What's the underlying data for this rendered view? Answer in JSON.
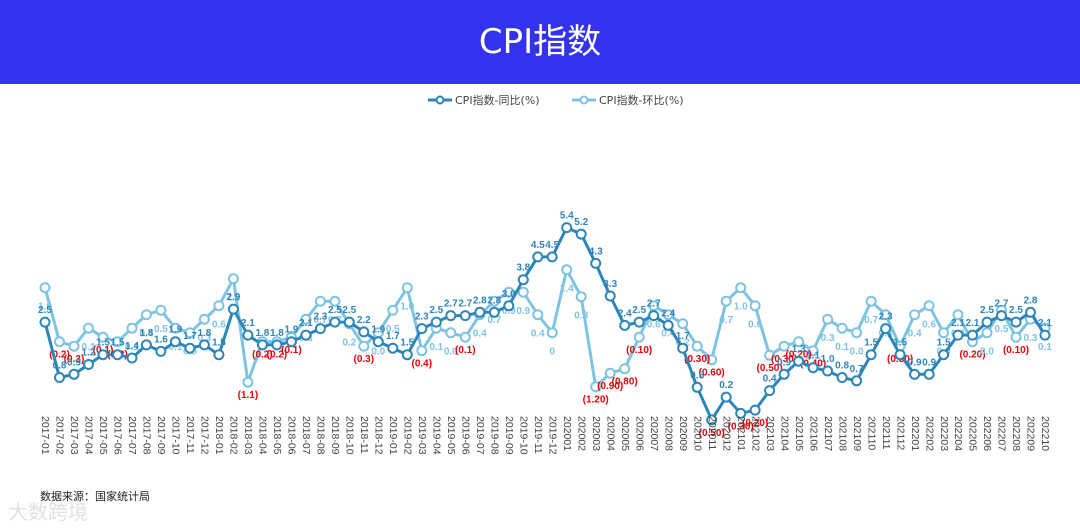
{
  "page": {
    "title": "CPI指数",
    "source": "数据来源：国家统计局",
    "watermark": "大数跨境"
  },
  "colors": {
    "header": "#3333ee",
    "yoy": "#2e86b8",
    "mom": "#7ec4e2",
    "negative": "#e8000b",
    "background": "#ffffff"
  },
  "chart_data": {
    "type": "line",
    "title": "",
    "xlabel": "",
    "ylabel": "",
    "legend_position": "top-center",
    "grid": false,
    "categories": [
      "2017-01",
      "2017-02",
      "2017-03",
      "2017-04",
      "2017-05",
      "2017-06",
      "2017-07",
      "2017-08",
      "2017-09",
      "2017-10",
      "2017-11",
      "2017-12",
      "2018-01",
      "2018-02",
      "2018-03",
      "2018-04",
      "2018-05",
      "2018-06",
      "2018-07",
      "2018-08",
      "2018-09",
      "2018-10",
      "2018-11",
      "2018-12",
      "2019-01",
      "2019-02",
      "2019-03",
      "2019-04",
      "2019-05",
      "2019-06",
      "2019-07",
      "2019-08",
      "2019-09",
      "2019-10",
      "2019-11",
      "2019-12",
      "202001",
      "202002",
      "202003",
      "202004",
      "202005",
      "202006",
      "202007",
      "202008",
      "202009",
      "202010",
      "202011",
      "202012",
      "202101",
      "202102",
      "202103",
      "202104",
      "202105",
      "202106",
      "202107",
      "202108",
      "202109",
      "202110",
      "202111",
      "202112",
      "202201",
      "202202",
      "202203",
      "202204",
      "202205",
      "202206",
      "202207",
      "202208",
      "202209",
      "202210"
    ],
    "series": [
      {
        "name": "CPI指数-同比(%)",
        "values": [
          2.5,
          0.8,
          0.9,
          1.2,
          1.5,
          1.5,
          1.4,
          1.8,
          1.6,
          1.9,
          1.7,
          1.8,
          1.5,
          2.9,
          2.1,
          1.8,
          1.8,
          1.9,
          2.1,
          2.3,
          2.5,
          2.5,
          2.2,
          1.9,
          1.7,
          1.5,
          2.3,
          2.5,
          2.7,
          2.7,
          2.8,
          2.8,
          3.0,
          3.8,
          4.5,
          4.5,
          5.4,
          5.2,
          4.3,
          3.3,
          2.4,
          2.5,
          2.7,
          2.4,
          1.7,
          0.5,
          -0.5,
          0.2,
          -0.3,
          -0.2,
          0.4,
          0.9,
          1.3,
          1.1,
          1.0,
          0.8,
          0.7,
          1.5,
          2.3,
          1.5,
          0.9,
          0.9,
          1.5,
          2.1,
          2.1,
          2.5,
          2.7,
          2.5,
          2.8,
          2.1
        ],
        "labels": [
          "2.5",
          "0.8",
          "0.9",
          "1.2",
          "1.5",
          "1.5",
          "1.4",
          "1.8",
          "1.6",
          "1.9",
          "1.7",
          "1.8",
          "1.5",
          "2.9",
          "2.1",
          "1.8",
          "1.8",
          "1.9",
          "2.1",
          "2.3",
          "2.5",
          "2.5",
          "2.2",
          "1.9",
          "1.7",
          "1.5",
          "2.3",
          "2.5",
          "2.7",
          "2.7",
          "2.8",
          "2.8",
          "3.0",
          "3.8",
          "4.5",
          "4.5",
          "5.4",
          "5.2",
          "4.3",
          "3.3",
          "2.4",
          "2.5",
          "2.7",
          "2.4",
          "1.7",
          "0.5",
          "(0.50)",
          "0.2",
          "(0.30)",
          "(0.20)",
          "0.4",
          "0.9",
          "1.3",
          "1.1",
          "1.0",
          "0.8",
          "0.7",
          "1.5",
          "2.3",
          "1.5",
          "0.9",
          "0.9",
          "1.5",
          "2.1",
          "2.1",
          "2.5",
          "2.7",
          "2.5",
          "2.8",
          "2.1"
        ]
      },
      {
        "name": "CPI指数-环比(%)",
        "values": [
          1.0,
          -0.2,
          -0.3,
          0.1,
          -0.1,
          -0.2,
          0.1,
          0.4,
          0.5,
          0.1,
          0.0,
          0.3,
          0.6,
          1.2,
          -1.1,
          -0.2,
          -0.2,
          -0.1,
          0.3,
          0.7,
          0.7,
          0.2,
          -0.3,
          0.0,
          0.5,
          1.0,
          -0.4,
          0.1,
          0.0,
          -0.1,
          0.4,
          0.7,
          0.9,
          0.9,
          0.4,
          0.0,
          1.4,
          0.8,
          -1.2,
          -0.9,
          -0.8,
          -0.1,
          0.6,
          0.4,
          0.2,
          -0.3,
          -0.6,
          0.7,
          1.0,
          0.6,
          -0.5,
          -0.3,
          -0.2,
          -0.4,
          0.3,
          0.1,
          0.0,
          0.7,
          0.4,
          -0.3,
          0.4,
          0.6,
          0.0,
          0.4,
          -0.2,
          0.0,
          0.5,
          -0.1,
          0.3,
          0.1
        ],
        "labels": [
          "1.0",
          "(0.2)",
          "(0.3)",
          "0.1",
          "(0.1)",
          "(0.2)",
          "0.1",
          "0.4",
          "0.5",
          "0.1",
          "0.0",
          "0.3",
          "0.6",
          "1.2",
          "(1.1)",
          "(0.2)",
          "(0.2)",
          "(0.1)",
          "0.3",
          "0.7",
          "0.7",
          "0.2",
          "(0.3)",
          "0.0",
          "0.5",
          "1.0",
          "(0.4)",
          "0.1",
          "0.0",
          "(0.1)",
          "0.4",
          "0.7",
          "0.9",
          "0.9",
          "0.4",
          "0",
          "1.4",
          "0.8",
          "(1.20)",
          "(0.90)",
          "(0.80)",
          "(0.10)",
          "0.6",
          "0.4",
          "0.2",
          "(0.30)",
          "(0.60)",
          "0.7",
          "1.0",
          "0.6",
          "(0.50)",
          "(0.30)",
          "(0.20)",
          "(0.40)",
          "0.3",
          "0.1",
          "0.0",
          "0.7",
          "0.4",
          "(0.30)",
          "0.4",
          "0.6",
          "0.0",
          "0.4",
          "(0.20)",
          "0.0",
          "0.5",
          "(0.10)",
          "0.3",
          "0.1"
        ]
      }
    ]
  }
}
